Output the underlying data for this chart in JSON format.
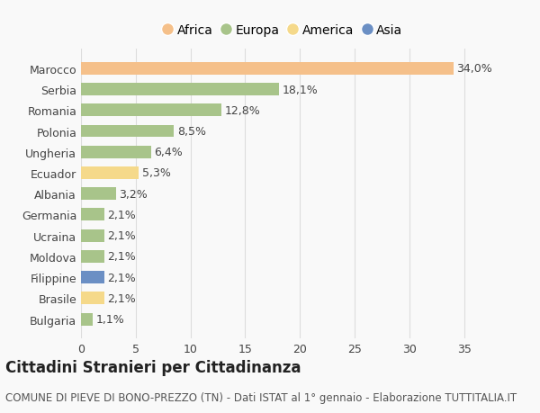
{
  "categories": [
    "Marocco",
    "Serbia",
    "Romania",
    "Polonia",
    "Ungheria",
    "Ecuador",
    "Albania",
    "Germania",
    "Ucraina",
    "Moldova",
    "Filippine",
    "Brasile",
    "Bulgaria"
  ],
  "values": [
    34.0,
    18.1,
    12.8,
    8.5,
    6.4,
    5.3,
    3.2,
    2.1,
    2.1,
    2.1,
    2.1,
    2.1,
    1.1
  ],
  "labels": [
    "34,0%",
    "18,1%",
    "12,8%",
    "8,5%",
    "6,4%",
    "5,3%",
    "3,2%",
    "2,1%",
    "2,1%",
    "2,1%",
    "2,1%",
    "2,1%",
    "1,1%"
  ],
  "colors": [
    "#F5C08A",
    "#A8C48A",
    "#A8C48A",
    "#A8C48A",
    "#A8C48A",
    "#F5D98A",
    "#A8C48A",
    "#A8C48A",
    "#A8C48A",
    "#A8C48A",
    "#6B8FC4",
    "#F5D98A",
    "#A8C48A"
  ],
  "legend_labels": [
    "Africa",
    "Europa",
    "America",
    "Asia"
  ],
  "legend_colors": [
    "#F5C08A",
    "#A8C48A",
    "#F5D98A",
    "#6B8FC4"
  ],
  "title": "Cittadini Stranieri per Cittadinanza",
  "subtitle": "COMUNE DI PIEVE DI BONO-PREZZO (TN) - Dati ISTAT al 1° gennaio - Elaborazione TUTTITALIA.IT",
  "xlim": [
    0,
    37
  ],
  "xticks": [
    0,
    5,
    10,
    15,
    20,
    25,
    30,
    35
  ],
  "background_color": "#f9f9f9",
  "grid_color": "#dddddd",
  "title_fontsize": 12,
  "subtitle_fontsize": 8.5,
  "label_fontsize": 9,
  "tick_fontsize": 9
}
